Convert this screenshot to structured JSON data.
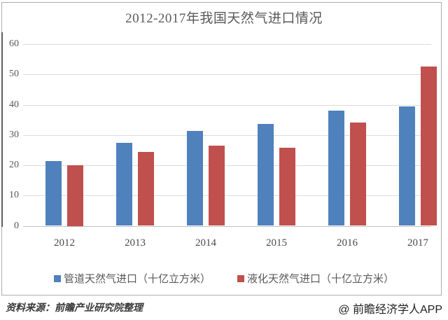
{
  "title": "2012-2017年我国天然气进口情况",
  "chart_data": {
    "type": "bar",
    "title": "2012-2017年我国天然气进口情况",
    "categories": [
      "2012",
      "2013",
      "2014",
      "2015",
      "2016",
      "2017"
    ],
    "series": [
      {
        "name": "管道天然气进口（十亿立方米）",
        "color": "#4F81BD",
        "values": [
          21.4,
          27.4,
          31.3,
          33.6,
          38.0,
          39.4
        ]
      },
      {
        "name": "液化天然气进口（十亿立方米）",
        "color": "#C0504D",
        "values": [
          20.0,
          24.5,
          26.5,
          25.7,
          34.2,
          52.6
        ]
      }
    ],
    "xlabel": "",
    "ylabel": "",
    "ylim": [
      0,
      60
    ],
    "yticks": [
      0,
      10,
      20,
      30,
      40,
      50,
      60
    ],
    "grid": "horizontal",
    "legend_position": "bottom"
  },
  "footer": {
    "source": "资料来源：前瞻产业研究院整理",
    "watermark": "@ 前瞻经济学人APP"
  },
  "colors": {
    "pipeline_blue": "#4F81BD",
    "lng_red": "#C0504D",
    "gridline": "#DCDCDC",
    "axis_line": "#C0C0C0",
    "frame_border": "#ACACAC",
    "text_gray": "#595959"
  }
}
